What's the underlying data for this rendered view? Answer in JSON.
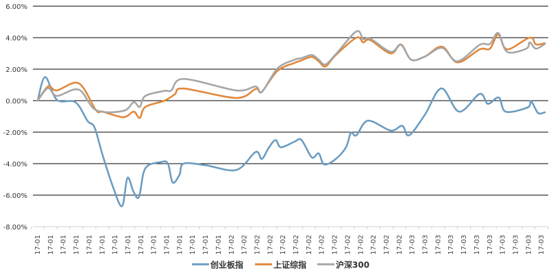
{
  "chart_data": {
    "type": "line",
    "title": "",
    "xlabel": "",
    "ylabel": "",
    "ylim": [
      -8,
      6
    ],
    "grid": true,
    "legend_position": "bottom",
    "yticks": [
      {
        "value": 6,
        "label": "6.00%"
      },
      {
        "value": 4,
        "label": "4.00%"
      },
      {
        "value": 2,
        "label": "2.00%"
      },
      {
        "value": 0,
        "label": "0.00%"
      },
      {
        "value": -2,
        "label": "-2.00%"
      },
      {
        "value": -4,
        "label": "-4.00%"
      },
      {
        "value": -6,
        "label": "-6.00%"
      },
      {
        "value": -8,
        "label": "-8.00%"
      }
    ],
    "categories": [
      "17-01",
      "17-01",
      "17-01",
      "17-01",
      "17-01",
      "17-01",
      "17-01",
      "17-01",
      "17-01",
      "17-01",
      "17-01",
      "17-01",
      "17-01",
      "17-01",
      "17-01",
      "17-02",
      "17-02",
      "17-02",
      "17-02",
      "17-02",
      "17-02",
      "17-02",
      "17-02",
      "17-02",
      "17-02",
      "17-02",
      "17-02",
      "17-02",
      "17-02",
      "17-03",
      "17-03",
      "17-03",
      "17-03",
      "17-03",
      "17-03",
      "17-03",
      "17-03",
      "17-03",
      "17-03",
      "17-03"
    ],
    "x_unit": "category index",
    "series": [
      {
        "name": "创业板指",
        "color": "#6b9cc0",
        "points": [
          [
            0,
            0
          ],
          [
            0.58,
            1.5
          ],
          [
            1.49,
            0.05
          ],
          [
            2.92,
            -0.1
          ],
          [
            3.87,
            -1.3
          ],
          [
            4.4,
            -1.7
          ],
          [
            5.04,
            -3.5
          ],
          [
            5.84,
            -5.5
          ],
          [
            6.53,
            -6.7
          ],
          [
            6.95,
            -4.9
          ],
          [
            7.43,
            -5.8
          ],
          [
            7.85,
            -6.1
          ],
          [
            8.33,
            -4.3
          ],
          [
            9.55,
            -3.9
          ],
          [
            10.08,
            -4.0
          ],
          [
            10.45,
            -5.2
          ],
          [
            10.98,
            -4.7
          ],
          [
            11.3,
            -4.0
          ],
          [
            13.0,
            -4.1
          ],
          [
            15.38,
            -4.4
          ],
          [
            16.87,
            -3.26
          ],
          [
            17.35,
            -3.7
          ],
          [
            17.88,
            -3.0
          ],
          [
            18.41,
            -2.5
          ],
          [
            18.83,
            -2.96
          ],
          [
            19.89,
            -2.6
          ],
          [
            20.42,
            -2.5
          ],
          [
            21.22,
            -3.6
          ],
          [
            21.75,
            -3.35
          ],
          [
            22.18,
            -4.05
          ],
          [
            23.08,
            -3.7
          ],
          [
            23.87,
            -2.95
          ],
          [
            24.24,
            -2.05
          ],
          [
            24.67,
            -2.2
          ],
          [
            25.57,
            -1.27
          ],
          [
            27.32,
            -1.9
          ],
          [
            28.22,
            -1.6
          ],
          [
            28.75,
            -2.2
          ],
          [
            29.97,
            -0.9
          ],
          [
            31.25,
            0.78
          ],
          [
            32.63,
            -0.7
          ],
          [
            34.22,
            0.43
          ],
          [
            34.85,
            -0.2
          ],
          [
            35.7,
            0.2
          ],
          [
            36.23,
            -0.7
          ],
          [
            37.93,
            -0.43
          ],
          [
            38.2,
            -0.04
          ],
          [
            38.73,
            -0.78
          ],
          [
            39.26,
            -0.74
          ]
        ]
      },
      {
        "name": "上证综指",
        "color": "#e0873a",
        "points": [
          [
            0,
            0
          ],
          [
            0.8,
            0.9
          ],
          [
            1.49,
            0.65
          ],
          [
            3.18,
            1.1
          ],
          [
            4.51,
            -0.6
          ],
          [
            5.04,
            -0.7
          ],
          [
            6.63,
            -1.05
          ],
          [
            7.43,
            -0.7
          ],
          [
            7.9,
            -1.1
          ],
          [
            8.33,
            -0.4
          ],
          [
            9.81,
            0.0
          ],
          [
            10.61,
            0.4
          ],
          [
            11.3,
            0.77
          ],
          [
            15.38,
            0.17
          ],
          [
            16.87,
            0.74
          ],
          [
            17.35,
            0.57
          ],
          [
            18.57,
            1.9
          ],
          [
            19.89,
            2.4
          ],
          [
            20.42,
            2.56
          ],
          [
            21.22,
            2.78
          ],
          [
            21.75,
            2.5
          ],
          [
            22.28,
            2.17
          ],
          [
            23.08,
            2.9
          ],
          [
            24.67,
            4.0
          ],
          [
            25.2,
            3.7
          ],
          [
            25.73,
            3.85
          ],
          [
            27.32,
            3.0
          ],
          [
            28.12,
            3.57
          ],
          [
            28.91,
            2.6
          ],
          [
            29.97,
            2.8
          ],
          [
            31.3,
            3.43
          ],
          [
            32.5,
            2.43
          ],
          [
            34.22,
            3.26
          ],
          [
            35.01,
            3.3
          ],
          [
            35.65,
            4.2
          ],
          [
            36.34,
            3.26
          ],
          [
            38.09,
            4.0
          ],
          [
            38.57,
            3.57
          ],
          [
            39.26,
            3.65
          ]
        ]
      },
      {
        "name": "沪深300",
        "color": "#a6a6a6",
        "points": [
          [
            0,
            0
          ],
          [
            0.8,
            0.8
          ],
          [
            1.49,
            0.3
          ],
          [
            3.18,
            0.7
          ],
          [
            4.51,
            -0.6
          ],
          [
            6.63,
            -0.65
          ],
          [
            7.43,
            -0.1
          ],
          [
            7.9,
            -0.4
          ],
          [
            8.33,
            0.3
          ],
          [
            9.81,
            0.62
          ],
          [
            10.34,
            0.65
          ],
          [
            11.3,
            1.38
          ],
          [
            15.38,
            0.65
          ],
          [
            16.87,
            0.9
          ],
          [
            17.35,
            0.55
          ],
          [
            18.57,
            2.05
          ],
          [
            19.89,
            2.6
          ],
          [
            20.42,
            2.7
          ],
          [
            21.22,
            2.9
          ],
          [
            21.75,
            2.6
          ],
          [
            22.28,
            2.3
          ],
          [
            23.08,
            2.95
          ],
          [
            24.67,
            4.4
          ],
          [
            25.2,
            3.9
          ],
          [
            25.73,
            3.95
          ],
          [
            27.32,
            3.1
          ],
          [
            28.12,
            3.55
          ],
          [
            28.91,
            2.6
          ],
          [
            29.97,
            2.8
          ],
          [
            31.3,
            3.35
          ],
          [
            32.5,
            2.5
          ],
          [
            34.22,
            3.55
          ],
          [
            35.01,
            3.6
          ],
          [
            35.65,
            4.3
          ],
          [
            36.34,
            3.1
          ],
          [
            37.82,
            3.3
          ],
          [
            38.09,
            3.7
          ],
          [
            38.57,
            3.3
          ],
          [
            39.26,
            3.6
          ]
        ]
      }
    ]
  }
}
